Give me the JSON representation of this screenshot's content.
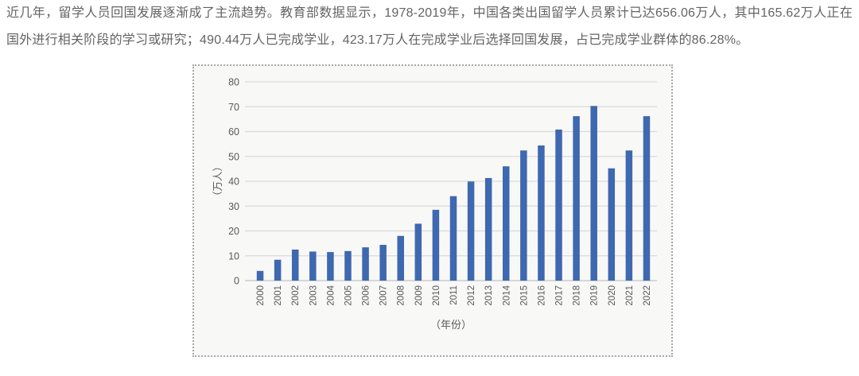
{
  "intro": {
    "text": "近几年，留学人员回国发展逐渐成了主流趋势。教育部数据显示，1978-2019年，中国各类出国留学人员累计已达656.06万人，其中165.62万人正在国外进行相关阶段的学习或研究；490.44万人已完成学业，423.17万人在完成学业后选择回国发展，占已完成学业群体的86.28%。"
  },
  "chart_data": {
    "type": "bar",
    "categories": [
      "2000",
      "2001",
      "2002",
      "2003",
      "2004",
      "2005",
      "2006",
      "2007",
      "2008",
      "2009",
      "2010",
      "2011",
      "2012",
      "2013",
      "2014",
      "2015",
      "2016",
      "2017",
      "2018",
      "2019",
      "2020",
      "2021",
      "2022"
    ],
    "values": [
      3.9,
      8.4,
      12.5,
      11.7,
      11.5,
      11.9,
      13.4,
      14.4,
      18.0,
      22.9,
      28.5,
      34.0,
      39.9,
      41.3,
      46.0,
      52.4,
      54.4,
      60.8,
      66.2,
      70.3,
      45.2,
      52.4,
      66.2
    ],
    "title": "",
    "xlabel": "（年份）",
    "ylabel": "（万人）",
    "ylim": [
      0,
      80
    ],
    "ytick_step": 10,
    "yticks": [
      0,
      10,
      20,
      30,
      40,
      50,
      60,
      70,
      80
    ],
    "grid": true,
    "legend_position": "none",
    "bar_color": "#3e68b0",
    "grid_color": "#dadada",
    "zero_line_color": "#c3c3c3",
    "axis_text_color": "#595959",
    "panel_bg": "#f8f8f7"
  }
}
